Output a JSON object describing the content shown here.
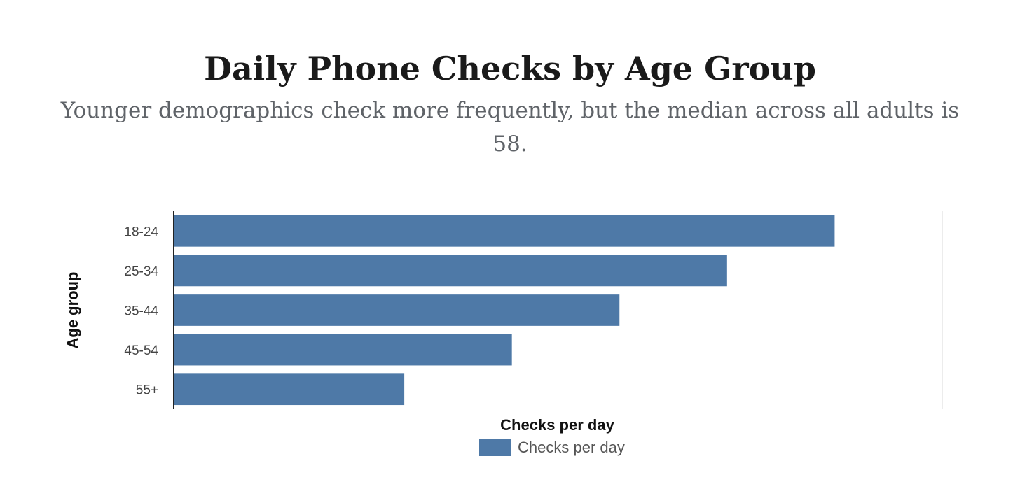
{
  "title": "Daily Phone Checks by Age Group",
  "subtitle": "Younger demographics check more frequently, but the median across all adults is 58.",
  "colors": {
    "bar": "#4e79a7",
    "axis": "#222222",
    "grid": "#e6e6e6"
  },
  "chart_data": {
    "type": "bar",
    "orientation": "horizontal",
    "categories": [
      "18-24",
      "25-34",
      "35-44",
      "45-54",
      "55+"
    ],
    "series": [
      {
        "name": "Checks per day",
        "values": [
          86,
          72,
          58,
          44,
          30
        ]
      }
    ],
    "xlabel": "Checks per day",
    "ylabel": "Age group",
    "xlim": [
      0,
      100
    ],
    "x_tick_labels_shown": false,
    "grid": false,
    "legend": "bottom-center"
  }
}
